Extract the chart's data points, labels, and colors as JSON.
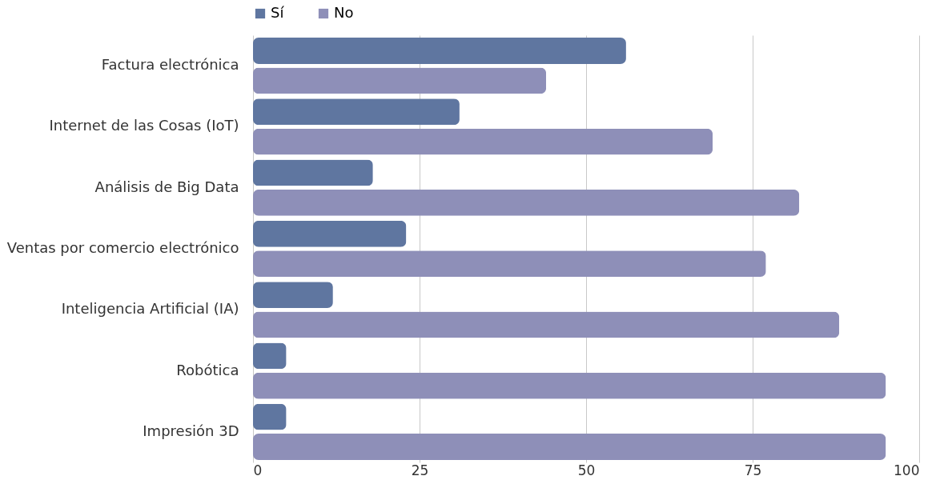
{
  "chart_data": {
    "type": "bar",
    "orientation": "horizontal",
    "categories": [
      "Factura electrónica",
      "Internet de las Cosas (IoT)",
      "Análisis de Big Data",
      "Ventas por comercio electrónico",
      "Inteligencia Artificial (IA)",
      "Robótica",
      "Impresión 3D"
    ],
    "series": [
      {
        "name": "Sí",
        "color": "#5f76a0",
        "values": [
          56,
          31,
          18,
          23,
          12,
          5,
          5
        ]
      },
      {
        "name": "No",
        "color": "#8e8fb8",
        "values": [
          44,
          69,
          82,
          77,
          88,
          95,
          95
        ]
      }
    ],
    "xlim": [
      0,
      100
    ],
    "xticks": [
      0,
      25,
      50,
      75,
      100
    ],
    "grid": "x",
    "legend": "top"
  }
}
